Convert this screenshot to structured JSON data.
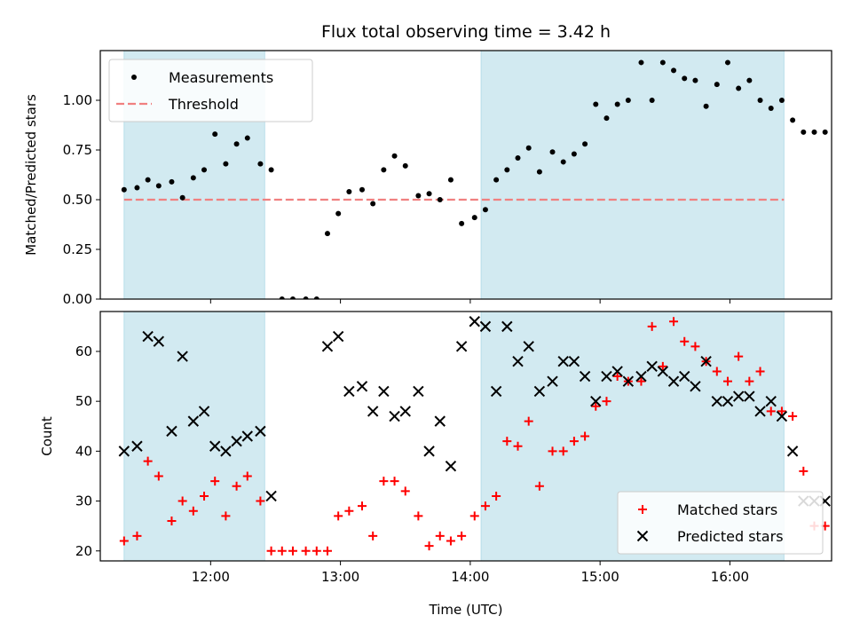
{
  "figure": {
    "title": "Flux total observing time = 3.42 h"
  },
  "chart_data": [
    {
      "type": "scatter",
      "panel": "top",
      "ylabel": "Matched/Predicted stars",
      "xlabel": "",
      "ylim": [
        0.0,
        1.25
      ],
      "xlim": [
        "11:09",
        "16:47"
      ],
      "x_ticks": [
        "12:00",
        "13:00",
        "14:00",
        "15:00",
        "16:00"
      ],
      "y_ticks": [
        "0.00",
        "0.25",
        "0.50",
        "0.75",
        "1.00"
      ],
      "grid": false,
      "legend_position": "upper-left",
      "shaded_regions": [
        {
          "start": "11:20",
          "end": "12:25",
          "color": "#add8e6"
        },
        {
          "start": "14:05",
          "end": "16:25",
          "color": "#add8e6"
        }
      ],
      "threshold": {
        "name": "Threshold",
        "value": 0.5,
        "color": "#f08080",
        "style": "dashed"
      },
      "series": [
        {
          "name": "Measurements",
          "marker": "dot",
          "color": "#000000",
          "x": [
            "11:20",
            "11:26",
            "11:31",
            "11:36",
            "11:42",
            "11:47",
            "11:52",
            "11:57",
            "12:02",
            "12:07",
            "12:12",
            "12:17",
            "12:23",
            "12:28",
            "12:33",
            "12:38",
            "12:44",
            "12:49",
            "12:54",
            "12:59",
            "13:04",
            "13:10",
            "13:15",
            "13:20",
            "13:25",
            "13:30",
            "13:36",
            "13:41",
            "13:46",
            "13:51",
            "13:56",
            "14:02",
            "14:07",
            "14:12",
            "14:17",
            "14:22",
            "14:27",
            "14:32",
            "14:38",
            "14:43",
            "14:48",
            "14:53",
            "14:58",
            "15:03",
            "15:08",
            "15:13",
            "15:19",
            "15:24",
            "15:29",
            "15:34",
            "15:39",
            "15:44",
            "15:49",
            "15:54",
            "15:59",
            "16:04",
            "16:09",
            "16:14",
            "16:19",
            "16:24",
            "16:29",
            "16:34",
            "16:39",
            "16:44"
          ],
          "y": [
            0.55,
            0.56,
            0.6,
            0.57,
            0.59,
            0.51,
            0.61,
            0.65,
            0.83,
            0.68,
            0.78,
            0.81,
            0.68,
            0.65,
            0.0,
            0.0,
            0.0,
            0.0,
            0.33,
            0.43,
            0.54,
            0.55,
            0.48,
            0.65,
            0.72,
            0.67,
            0.52,
            0.53,
            0.5,
            0.6,
            0.38,
            0.41,
            0.45,
            0.6,
            0.65,
            0.71,
            0.76,
            0.64,
            0.74,
            0.69,
            0.73,
            0.78,
            0.98,
            0.91,
            0.98,
            1.0,
            1.19,
            1.0,
            1.19,
            1.15,
            1.11,
            1.1,
            0.97,
            1.08,
            1.19,
            1.06,
            1.1,
            1.0,
            0.96,
            1.0,
            0.9,
            0.84,
            0.84,
            0.84
          ]
        }
      ]
    },
    {
      "type": "scatter",
      "panel": "bottom",
      "ylabel": "Count",
      "xlabel": "Time (UTC)",
      "ylim": [
        18,
        68
      ],
      "xlim": [
        "11:09",
        "16:47"
      ],
      "x_ticks": [
        "12:00",
        "13:00",
        "14:00",
        "15:00",
        "16:00"
      ],
      "y_ticks": [
        "20",
        "30",
        "40",
        "50",
        "60"
      ],
      "grid": false,
      "legend_position": "lower-right",
      "shaded_regions": [
        {
          "start": "11:20",
          "end": "12:25",
          "color": "#add8e6"
        },
        {
          "start": "14:05",
          "end": "16:25",
          "color": "#add8e6"
        }
      ],
      "series": [
        {
          "name": "Matched stars",
          "marker": "plus",
          "color": "#ff0000",
          "x": [
            "11:20",
            "11:26",
            "11:31",
            "11:36",
            "11:42",
            "11:47",
            "11:52",
            "11:57",
            "12:02",
            "12:07",
            "12:12",
            "12:17",
            "12:23",
            "12:28",
            "12:33",
            "12:38",
            "12:44",
            "12:49",
            "12:54",
            "12:59",
            "13:04",
            "13:10",
            "13:15",
            "13:20",
            "13:25",
            "13:30",
            "13:36",
            "13:41",
            "13:46",
            "13:51",
            "13:56",
            "14:02",
            "14:07",
            "14:12",
            "14:17",
            "14:22",
            "14:27",
            "14:32",
            "14:38",
            "14:43",
            "14:48",
            "14:53",
            "14:58",
            "15:03",
            "15:08",
            "15:13",
            "15:19",
            "15:24",
            "15:29",
            "15:34",
            "15:39",
            "15:44",
            "15:49",
            "15:54",
            "15:59",
            "16:04",
            "16:09",
            "16:14",
            "16:19",
            "16:24",
            "16:29",
            "16:34",
            "16:39",
            "16:44"
          ],
          "y": [
            22,
            23,
            38,
            35,
            26,
            30,
            28,
            31,
            34,
            27,
            33,
            35,
            30,
            20,
            20,
            20,
            20,
            20,
            20,
            27,
            28,
            29,
            23,
            34,
            34,
            32,
            27,
            21,
            23,
            22,
            23,
            27,
            29,
            31,
            42,
            41,
            46,
            33,
            40,
            40,
            42,
            43,
            49,
            50,
            55,
            54,
            54,
            65,
            57,
            66,
            62,
            61,
            58,
            56,
            54,
            59,
            54,
            56,
            48,
            48,
            47,
            36,
            25,
            25
          ]
        },
        {
          "name": "Predicted stars",
          "marker": "x",
          "color": "#000000",
          "x": [
            "11:20",
            "11:26",
            "11:31",
            "11:36",
            "11:42",
            "11:47",
            "11:52",
            "11:57",
            "12:02",
            "12:07",
            "12:12",
            "12:17",
            "12:23",
            "12:28",
            "12:54",
            "12:59",
            "13:04",
            "13:10",
            "13:15",
            "13:20",
            "13:25",
            "13:30",
            "13:36",
            "13:41",
            "13:46",
            "13:51",
            "13:56",
            "14:02",
            "14:07",
            "14:12",
            "14:17",
            "14:22",
            "14:27",
            "14:32",
            "14:38",
            "14:43",
            "14:48",
            "14:53",
            "14:58",
            "15:03",
            "15:08",
            "15:13",
            "15:19",
            "15:24",
            "15:29",
            "15:34",
            "15:39",
            "15:44",
            "15:49",
            "15:54",
            "15:59",
            "16:04",
            "16:09",
            "16:14",
            "16:19",
            "16:24",
            "16:29",
            "16:34",
            "16:39",
            "16:44"
          ],
          "y": [
            40,
            41,
            63,
            62,
            44,
            59,
            46,
            48,
            41,
            40,
            42,
            43,
            44,
            31,
            61,
            63,
            52,
            53,
            48,
            52,
            47,
            48,
            52,
            40,
            46,
            37,
            61,
            66,
            65,
            52,
            65,
            58,
            61,
            52,
            54,
            58,
            58,
            55,
            50,
            55,
            56,
            54,
            55,
            57,
            56,
            54,
            55,
            53,
            58,
            50,
            50,
            51,
            51,
            48,
            50,
            47,
            40,
            30,
            30,
            30
          ]
        }
      ]
    }
  ]
}
